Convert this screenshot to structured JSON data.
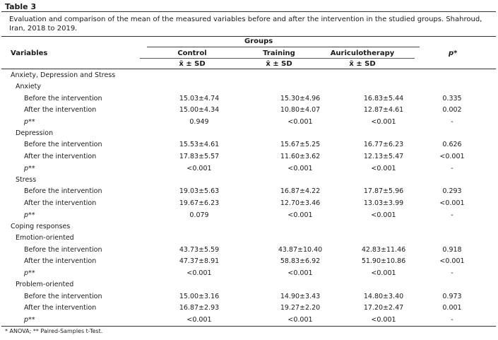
{
  "table_label": "Table 3",
  "caption": "Evaluation and comparison of the mean of the measured variables before and after the intervention in the studied groups. Shahroud, Iran, 2018 to 2019.",
  "header": {
    "groups": "Groups",
    "variables": "Variables",
    "control": "Control",
    "training": "Training",
    "auriculotherapy": "Auriculotherapy",
    "p": "p*",
    "stat": "x̄ ± SD"
  },
  "rows": [
    {
      "label": "Anxiety, Depression and Stress",
      "c1": "",
      "c2": "",
      "c3": "",
      "p": ""
    },
    {
      "label": "Anxiety",
      "c1": "",
      "c2": "",
      "c3": "",
      "p": ""
    },
    {
      "label": "Before the intervention",
      "c1": "15.03±4.74",
      "c2": "15.30±4.96",
      "c3": "16.83±5.44",
      "p": "0.335"
    },
    {
      "label": "After the intervention",
      "c1": "15.00±4.34",
      "c2": "10.80±4.07",
      "c3": "12.87±4.61",
      "p": "0.002"
    },
    {
      "label": "p**",
      "c1": "0.949",
      "c2": "<0.001",
      "c3": "<0.001",
      "p": "-"
    },
    {
      "label": "Depression",
      "c1": "",
      "c2": "",
      "c3": "",
      "p": ""
    },
    {
      "label": "Before the intervention",
      "c1": "15.53±4.61",
      "c2": "15.67±5.25",
      "c3": "16.77±6.23",
      "p": "0.626"
    },
    {
      "label": "After the intervention",
      "c1": "17.83±5.57",
      "c2": "11.60±3.62",
      "c3": "12.13±5.47",
      "p": "<0.001"
    },
    {
      "label": "p**",
      "c1": "<0.001",
      "c2": "<0.001",
      "c3": "<0.001",
      "p": "-"
    },
    {
      "label": "Stress",
      "c1": "",
      "c2": "",
      "c3": "",
      "p": ""
    },
    {
      "label": "Before the intervention",
      "c1": "19.03±5.63",
      "c2": "16.87±4.22",
      "c3": "17.87±5.96",
      "p": "0.293"
    },
    {
      "label": "After the intervention",
      "c1": "19.67±6.23",
      "c2": "12.70±3.46",
      "c3": "13.03±3.99",
      "p": "<0.001"
    },
    {
      "label": "p**",
      "c1": "0.079",
      "c2": "<0.001",
      "c3": "<0.001",
      "p": "-"
    },
    {
      "label": "Coping responses",
      "c1": "",
      "c2": "",
      "c3": "",
      "p": ""
    },
    {
      "label": "Emotion-oriented",
      "c1": "",
      "c2": "",
      "c3": "",
      "p": ""
    },
    {
      "label": "Before the intervention",
      "c1": "43.73±5.59",
      "c2": "43.87±10.40",
      "c3": "42.83±11.46",
      "p": "0.918"
    },
    {
      "label": "After the intervention",
      "c1": "47.37±8.91",
      "c2": "58.83±6.92",
      "c3": "51.90±10.86",
      "p": "<0.001"
    },
    {
      "label": "p**",
      "c1": "<0.001",
      "c2": "<0.001",
      "c3": "<0.001",
      "p": "-"
    },
    {
      "label": "Problem-oriented",
      "c1": "",
      "c2": "",
      "c3": "",
      "p": ""
    },
    {
      "label": "Before the intervention",
      "c1": "15.00±3.16",
      "c2": "14.90±3.43",
      "c3": "14.80±3.40",
      "p": "0.973"
    },
    {
      "label": "After the intervention",
      "c1": "16.87±2.93",
      "c2": "19.27±2.20",
      "c3": "17.20±2.47",
      "p": "0.001"
    },
    {
      "label": "p**",
      "c1": "<0.001",
      "c2": "<0.001",
      "c3": "<0.001",
      "p": "-"
    }
  ],
  "footnote": "* ANOVA; ** Paired-Samples t-Test."
}
